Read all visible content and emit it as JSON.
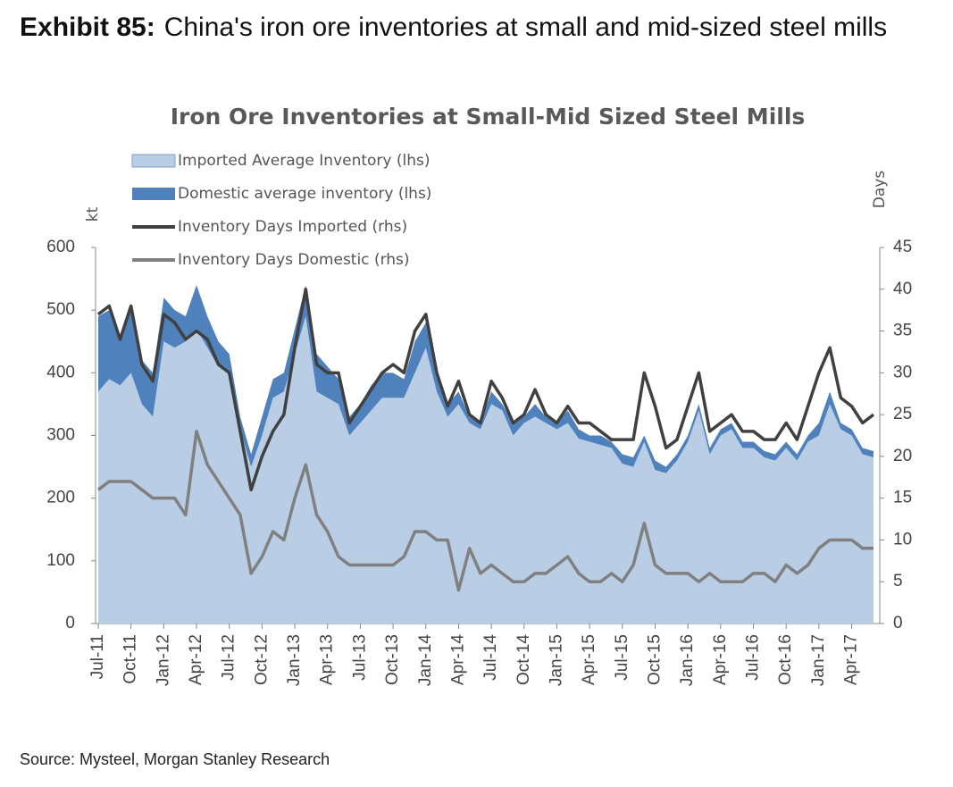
{
  "header": {
    "label": "Exhibit 85:",
    "title": "China's iron ore inventories at small and mid-sized steel mills"
  },
  "source": "Source: Mysteel, Morgan Stanley Research",
  "chart_data": {
    "type": "combo",
    "title": "Iron Ore Inventories at Small-Mid Sized Steel Mills",
    "ylabel": "kt",
    "y2label": "Days",
    "categories": [
      "Jul-11",
      null,
      null,
      "Oct-11",
      null,
      null,
      "Jan-12",
      null,
      null,
      "Apr-12",
      null,
      null,
      "Jul-12",
      null,
      null,
      "Oct-12",
      null,
      null,
      "Jan-13",
      null,
      null,
      "Apr-13",
      null,
      null,
      "Jul-13",
      null,
      null,
      "Oct-13",
      null,
      null,
      "Jan-14",
      null,
      null,
      "Apr-14",
      null,
      null,
      "Jul-14",
      null,
      null,
      "Oct-14",
      null,
      null,
      "Jan-15",
      null,
      null,
      "Apr-15",
      null,
      null,
      "Jul-15",
      null,
      null,
      "Oct-15",
      null,
      null,
      "Jan-16",
      null,
      null,
      "Apr-16",
      null,
      null,
      "Jul-16",
      null,
      null,
      "Oct-16",
      null,
      null,
      "Jan-17",
      null,
      null,
      "Apr-17",
      null,
      null
    ],
    "series": [
      {
        "name": "Imported Average Inventory (lhs)",
        "type": "area",
        "color": "#b9cde5",
        "values": [
          370,
          390,
          380,
          400,
          350,
          330,
          450,
          440,
          450,
          470,
          440,
          410,
          400,
          310,
          250,
          300,
          360,
          370,
          430,
          490,
          370,
          360,
          350,
          300,
          320,
          340,
          360,
          360,
          360,
          400,
          440,
          370,
          330,
          350,
          320,
          310,
          350,
          340,
          300,
          320,
          330,
          320,
          310,
          320,
          295,
          290,
          285,
          280,
          255,
          250,
          290,
          245,
          240,
          260,
          290,
          340,
          270,
          300,
          310,
          280,
          280,
          265,
          260,
          280,
          260,
          290,
          300,
          350,
          310,
          300,
          270,
          265
        ]
      },
      {
        "name": "Domestic average inventory (lhs)",
        "type": "area",
        "color": "#4f81bd",
        "values": [
          120,
          110,
          80,
          110,
          70,
          70,
          70,
          60,
          40,
          70,
          50,
          40,
          30,
          20,
          20,
          30,
          30,
          30,
          40,
          50,
          60,
          50,
          40,
          30,
          30,
          40,
          40,
          40,
          30,
          50,
          40,
          30,
          20,
          20,
          10,
          10,
          20,
          10,
          20,
          10,
          20,
          10,
          10,
          20,
          15,
          10,
          15,
          10,
          15,
          15,
          10,
          15,
          10,
          10,
          10,
          10,
          10,
          10,
          10,
          10,
          10,
          10,
          10,
          10,
          10,
          10,
          20,
          20,
          10,
          10,
          10,
          10
        ]
      },
      {
        "name": "Inventory Days Imported (rhs)",
        "type": "line",
        "axis": "y2",
        "color": "#404040",
        "values": [
          37,
          38,
          34,
          38,
          31,
          29,
          37,
          36,
          34,
          35,
          34,
          31,
          30,
          23,
          16,
          20,
          23,
          25,
          33,
          40,
          31,
          30,
          30,
          24,
          26,
          28,
          30,
          31,
          30,
          35,
          37,
          30,
          26,
          29,
          25,
          24,
          29,
          27,
          24,
          25,
          28,
          25,
          24,
          26,
          24,
          24,
          23,
          22,
          22,
          22,
          30,
          26,
          21,
          22,
          26,
          30,
          23,
          24,
          25,
          23,
          23,
          22,
          22,
          24,
          22,
          26,
          30,
          33,
          27,
          26,
          24,
          25
        ]
      },
      {
        "name": "Inventory Days Domestic (rhs)",
        "type": "line",
        "axis": "y2",
        "color": "#808080",
        "values": [
          16,
          17,
          17,
          17,
          16,
          15,
          15,
          15,
          13,
          23,
          19,
          17,
          15,
          13,
          6,
          8,
          11,
          10,
          15,
          19,
          13,
          11,
          8,
          7,
          7,
          7,
          7,
          7,
          8,
          11,
          11,
          10,
          10,
          4,
          9,
          6,
          7,
          6,
          5,
          5,
          6,
          6,
          7,
          8,
          6,
          5,
          5,
          6,
          5,
          7,
          12,
          7,
          6,
          6,
          6,
          5,
          6,
          5,
          5,
          5,
          6,
          6,
          5,
          7,
          6,
          7,
          9,
          10,
          10,
          10,
          9,
          9
        ]
      }
    ],
    "ylim": [
      0,
      600
    ],
    "yticks": [
      0,
      100,
      200,
      300,
      400,
      500,
      600
    ],
    "y2lim": [
      0,
      45
    ],
    "y2ticks": [
      0,
      5,
      10,
      15,
      20,
      25,
      30,
      35,
      40,
      45
    ]
  }
}
